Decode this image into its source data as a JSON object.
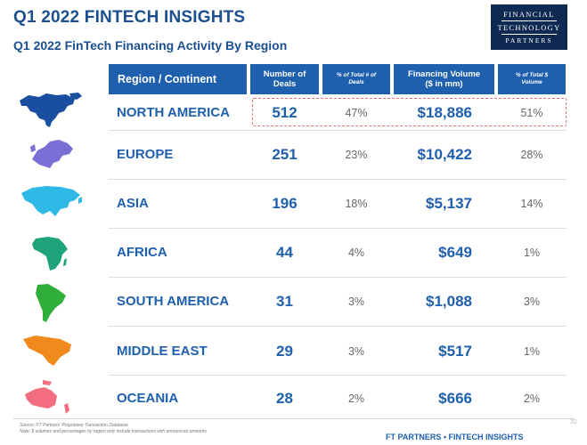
{
  "header": {
    "title": "Q1 2022 FINTECH INSIGHTS",
    "subtitle": "Q1 2022 FinTech Financing Activity By Region",
    "logo_line1": "FINANCIAL",
    "logo_line2": "TECHNOLOGY",
    "logo_line3": "PARTNERS"
  },
  "table": {
    "columns": {
      "region": "Region / Continent",
      "deals_line1": "Number of",
      "deals_line2": "Deals",
      "pct_deals_line1": "% of Total # of",
      "pct_deals_line2": "Deals",
      "volume_line1": "Financing Volume",
      "volume_line2": "($ in mm)",
      "pct_volume_line1": "% of Total $",
      "pct_volume_line2": "Volume"
    },
    "rows": [
      {
        "region": "NORTH AMERICA",
        "deals": "512",
        "pct_deals": "47%",
        "volume": "$18,886",
        "pct_volume": "51%",
        "map_color": "#1a4fa0",
        "map_icon": "north-america-map-icon",
        "highlighted": true
      },
      {
        "region": "EUROPE",
        "deals": "251",
        "pct_deals": "23%",
        "volume": "$10,422",
        "pct_volume": "28%",
        "map_color": "#7b6fd6",
        "map_icon": "europe-map-icon"
      },
      {
        "region": "ASIA",
        "deals": "196",
        "pct_deals": "18%",
        "volume": "$5,137",
        "pct_volume": "14%",
        "map_color": "#2fb9e6",
        "map_icon": "asia-map-icon"
      },
      {
        "region": "AFRICA",
        "deals": "44",
        "pct_deals": "4%",
        "volume": "$649",
        "pct_volume": "1%",
        "map_color": "#1fa37a",
        "map_icon": "africa-map-icon"
      },
      {
        "region": "SOUTH AMERICA",
        "deals": "31",
        "pct_deals": "3%",
        "volume": "$1,088",
        "pct_volume": "3%",
        "map_color": "#2fae3a",
        "map_icon": "south-america-map-icon"
      },
      {
        "region": "MIDDLE EAST",
        "deals": "29",
        "pct_deals": "3%",
        "volume": "$517",
        "pct_volume": "1%",
        "map_color": "#f08a1c",
        "map_icon": "middle-east-map-icon"
      },
      {
        "region": "OCEANIA",
        "deals": "28",
        "pct_deals": "2%",
        "volume": "$666",
        "pct_volume": "2%",
        "map_color": "#f26d7d",
        "map_icon": "oceania-map-icon"
      }
    ]
  },
  "footer": {
    "source": "Source: FT Partners' Proprietary Transaction Database",
    "note": "Note: $ volumes and percentages by region only include transactions with announced amounts",
    "page_number": "32",
    "brand": "FT PARTNERS • FINTECH INSIGHTS"
  }
}
